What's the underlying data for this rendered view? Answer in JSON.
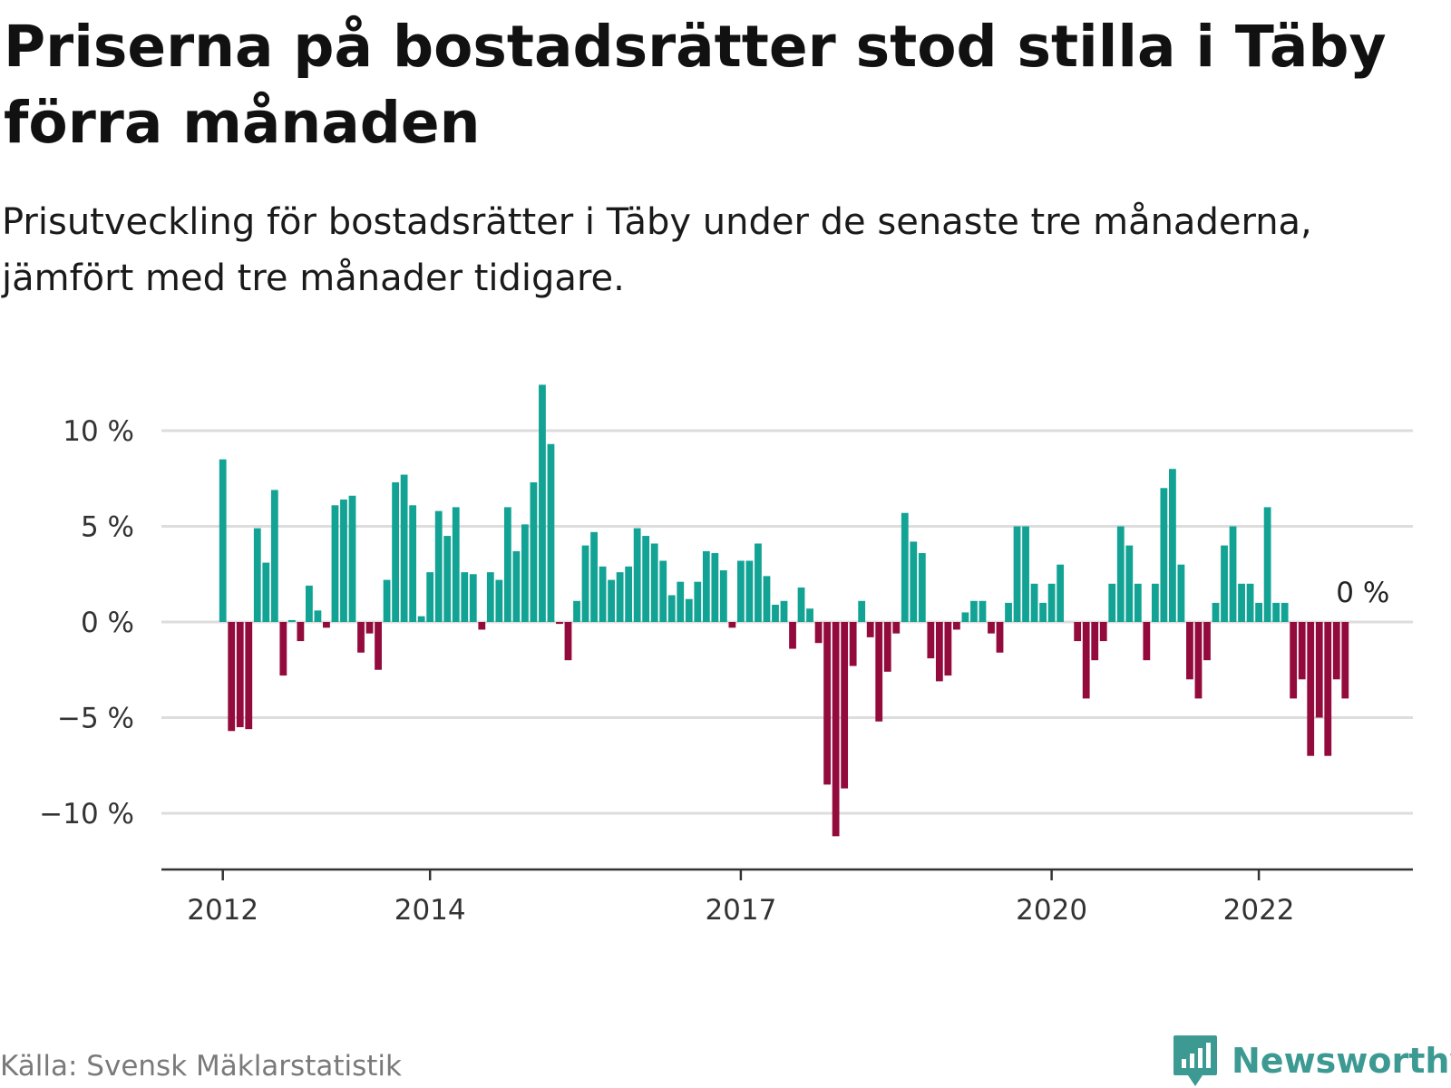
{
  "title": "Priserna på bostadsrätter stod stilla i Täby förra månaden",
  "subtitle": "Prisutveckling för bostadsrätter i Täby under de senaste tre månaderna, jämfört med tre månader tidigare.",
  "source": "Källa: Svensk Mäklarstatistik",
  "brand": {
    "name": "Newsworthy",
    "icon": "newsworthy-logo-icon"
  },
  "colors": {
    "positive": "#12a395",
    "negative": "#930a3c",
    "grid": "#dddddd",
    "axis": "#333333"
  },
  "chart_data": {
    "type": "bar",
    "title": "Priserna på bostadsrätter stod stilla i Täby förra månaden",
    "subtitle": "Prisutveckling för bostadsrätter i Täby under de senaste tre månaderna, jämfört med tre månader tidigare.",
    "xlabel": "",
    "ylabel": "",
    "unit": "%",
    "ylim": [
      -12.8,
      12.8
    ],
    "y_ticks": [
      10,
      5,
      0,
      -5,
      -10
    ],
    "y_tick_labels": [
      "10 %",
      "5 %",
      "0 %",
      "−5 %",
      "−10 %"
    ],
    "grid": true,
    "x_ticks": [
      {
        "label": "2012",
        "index": 0
      },
      {
        "label": "2014",
        "index": 24
      },
      {
        "label": "2017",
        "index": 60
      },
      {
        "label": "2020",
        "index": 96
      },
      {
        "label": "2022",
        "index": 120
      }
    ],
    "start": "2012-01",
    "frequency": "monthly",
    "last_value_label": "0 %",
    "values": [
      8.5,
      -5.7,
      -5.5,
      -5.6,
      4.9,
      3.1,
      6.9,
      -2.8,
      0.1,
      -1.0,
      1.9,
      0.6,
      -0.3,
      6.1,
      6.4,
      6.6,
      -1.6,
      -0.6,
      -2.5,
      2.2,
      7.3,
      7.7,
      6.1,
      0.3,
      2.6,
      5.8,
      4.5,
      6.0,
      2.6,
      2.5,
      -0.4,
      2.6,
      2.2,
      6.0,
      3.7,
      5.1,
      7.3,
      12.4,
      9.3,
      -0.1,
      -2.0,
      1.1,
      4.0,
      4.7,
      2.9,
      2.2,
      2.6,
      2.9,
      4.9,
      4.5,
      4.1,
      3.2,
      1.4,
      2.1,
      1.2,
      2.1,
      3.7,
      3.6,
      2.7,
      -0.3,
      3.2,
      3.2,
      4.1,
      2.4,
      0.9,
      1.1,
      -1.4,
      1.8,
      0.7,
      -1.1,
      -8.5,
      -11.2,
      -8.7,
      -2.3,
      1.1,
      -0.8,
      -5.2,
      -2.6,
      -0.6,
      5.7,
      4.2,
      3.6,
      -1.9,
      -3.1,
      -2.8,
      -0.4,
      0.5,
      1.1,
      1.1,
      -0.6,
      -1.6,
      1.0,
      5.0,
      5.0,
      2.0,
      1.0,
      2.0,
      3.0,
      0.0,
      -1.0,
      -4.0,
      -2.0,
      -1.0,
      2.0,
      5.0,
      4.0,
      2.0,
      -2.0,
      2.0,
      7.0,
      8.0,
      3.0,
      -3.0,
      -4.0,
      -2.0,
      1.0,
      4.0,
      5.0,
      2.0,
      2.0,
      1.0,
      6.0,
      1.0,
      1.0,
      -4.0,
      -3.0,
      -7.0,
      -5.0,
      -7.0,
      -3.0,
      -4.0,
      0.0
    ]
  }
}
